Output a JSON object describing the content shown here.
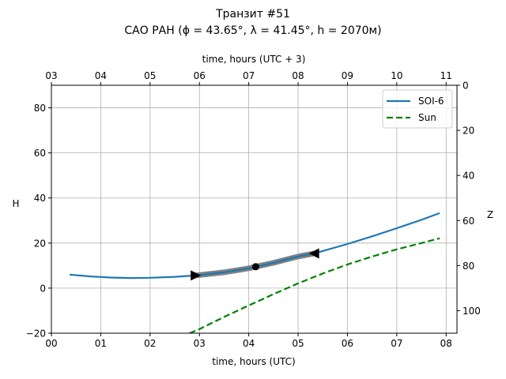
{
  "chart_data": {
    "type": "line",
    "title_line1": "Транзит #51",
    "title_line2": "САО РАН (ϕ = 43.65°, λ = 41.45°, h = 2070м)",
    "xlabel": "time, hours (UTC)",
    "xlabel_top": "time, hours (UTC + 3)",
    "ylabel": "H",
    "ylabel_right": "Z",
    "xlim": [
      0,
      8.22
    ],
    "ylim": [
      -20,
      90
    ],
    "ylim_right": [
      110,
      0
    ],
    "grid": true,
    "legend_position": "top-right",
    "x_ticks": [
      0,
      1,
      2,
      3,
      4,
      5,
      6,
      7,
      8
    ],
    "x_tick_labels": [
      "00",
      "01",
      "02",
      "03",
      "04",
      "05",
      "06",
      "07",
      "08"
    ],
    "x_top_ticks": [
      0,
      1,
      2,
      3,
      4,
      5,
      6,
      7,
      8
    ],
    "x_top_tick_labels": [
      "03",
      "04",
      "05",
      "06",
      "07",
      "08",
      "09",
      "10",
      "11"
    ],
    "y_ticks": [
      -20,
      0,
      20,
      40,
      60,
      80
    ],
    "y_tick_labels": [
      "−20",
      "0",
      "20",
      "40",
      "60",
      "80"
    ],
    "y_right_ticks": [
      0,
      20,
      40,
      60,
      80,
      100
    ],
    "y_right_tick_labels": [
      "0",
      "20",
      "40",
      "60",
      "80",
      "100"
    ],
    "series": [
      {
        "name": "SOI-6",
        "color": "#1f77b4",
        "style": "solid",
        "x": [
          0.37,
          0.8,
          1.2,
          1.6,
          2.0,
          2.5,
          2.92,
          3.5,
          4.0,
          4.5,
          5.0,
          5.33,
          6.0,
          6.5,
          7.0,
          7.5,
          7.87
        ],
        "y": [
          6.0,
          5.2,
          4.7,
          4.5,
          4.6,
          5.0,
          5.6,
          7.0,
          8.8,
          11.2,
          14.0,
          15.4,
          19.6,
          23.0,
          26.6,
          30.3,
          33.3
        ]
      },
      {
        "name": "Sun",
        "color": "#008000",
        "style": "dashed",
        "x": [
          2.8,
          3.0,
          3.5,
          4.0,
          4.5,
          5.0,
          5.5,
          6.0,
          6.5,
          7.0,
          7.5,
          7.87
        ],
        "y": [
          -20,
          -18.2,
          -12.8,
          -7.7,
          -2.7,
          2.1,
          6.5,
          10.5,
          14.0,
          17.2,
          20.0,
          22.1
        ]
      }
    ],
    "transit_window": {
      "x": [
        2.92,
        3.5,
        4.0,
        4.14,
        4.5,
        5.0,
        5.33
      ],
      "y": [
        5.6,
        7.0,
        8.8,
        9.5,
        11.2,
        14.0,
        15.4
      ],
      "color": "#808080"
    },
    "markers": [
      {
        "name": "start",
        "x": 2.92,
        "y": 5.6,
        "shape": "triangle-right"
      },
      {
        "name": "peak",
        "x": 4.14,
        "y": 9.5,
        "shape": "circle"
      },
      {
        "name": "end",
        "x": 5.33,
        "y": 15.4,
        "shape": "triangle-left"
      }
    ]
  }
}
